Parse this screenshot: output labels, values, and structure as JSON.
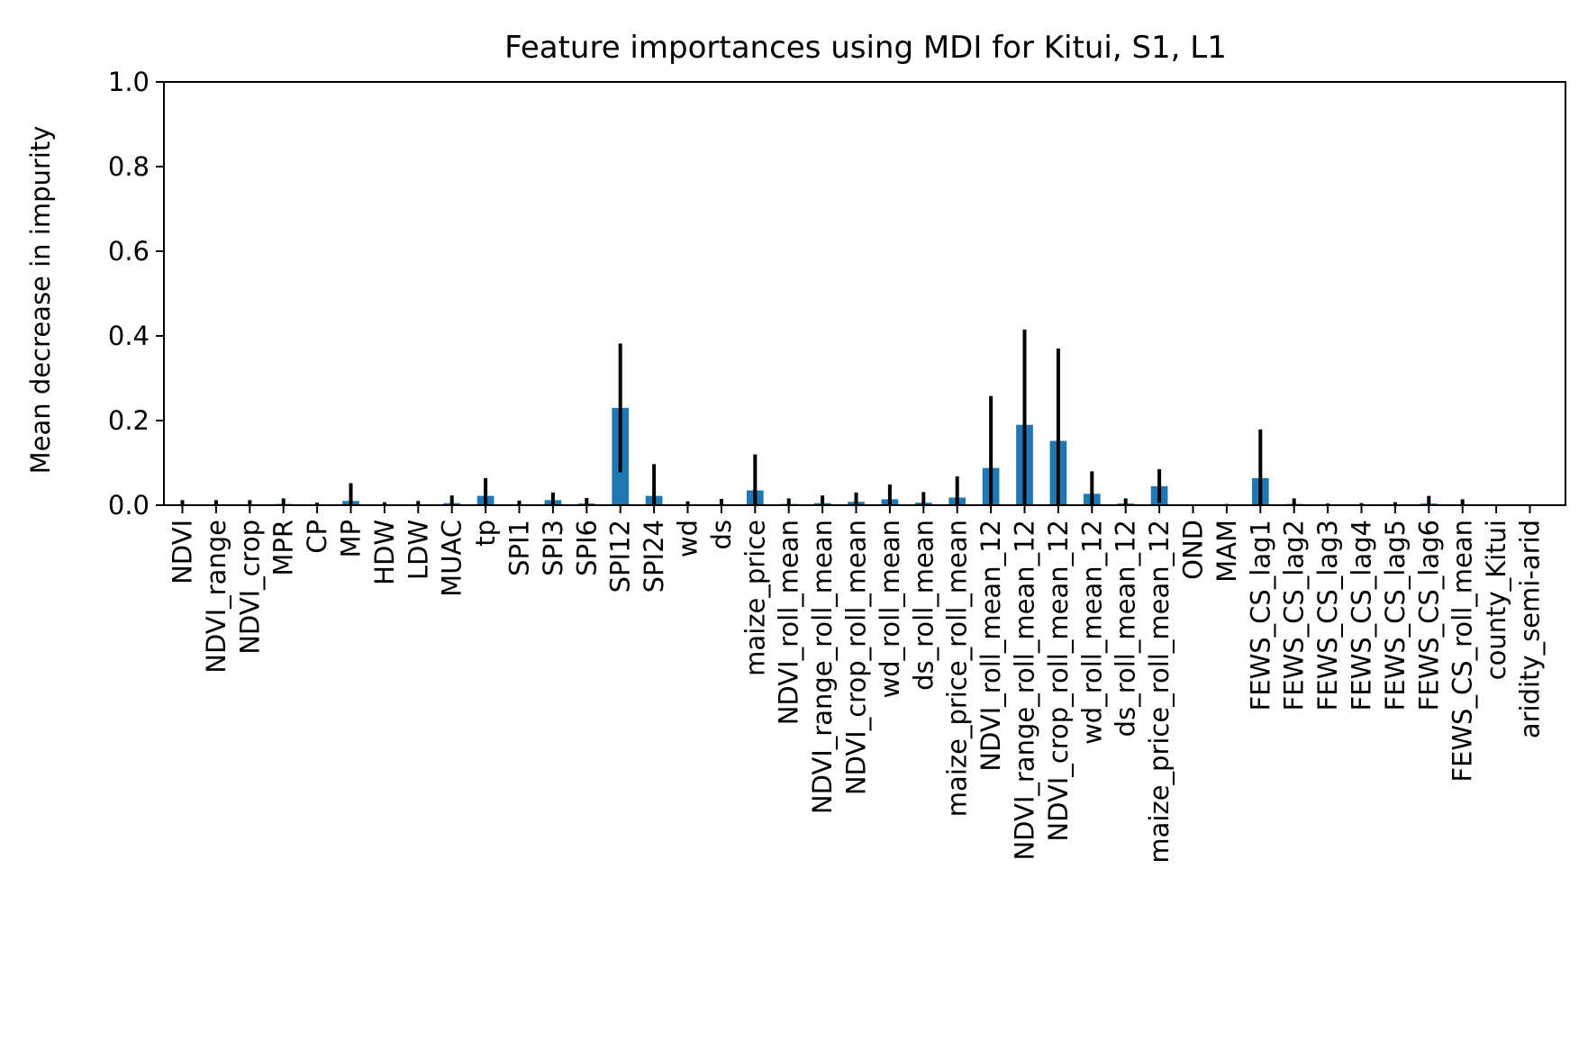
{
  "chart_data": {
    "type": "bar",
    "title": "Feature importances using MDI for Kitui, S1, L1",
    "xlabel": "",
    "ylabel": "Mean decrease in impurity",
    "ylim": [
      0,
      1.0
    ],
    "yticks": [
      "0.0",
      "0.2",
      "0.4",
      "0.6",
      "0.8",
      "1.0"
    ],
    "grid": false,
    "bar_color": "#1f77b4",
    "error_color": "#000000",
    "categories": [
      "NDVI",
      "NDVI_range",
      "NDVI_crop",
      "MPR",
      "CP",
      "MP",
      "HDW",
      "LDW",
      "MUAC",
      "tp",
      "SPI1",
      "SPI3",
      "SPI6",
      "SPI12",
      "SPI24",
      "wd",
      "ds",
      "maize_price",
      "NDVI_roll_mean",
      "NDVI_range_roll_mean",
      "NDVI_crop_roll_mean",
      "wd_roll_mean",
      "ds_roll_mean",
      "maize_price_roll_mean",
      "NDVI_roll_mean_12",
      "NDVI_range_roll_mean_12",
      "NDVI_crop_roll_mean_12",
      "wd_roll_mean_12",
      "ds_roll_mean_12",
      "maize_price_roll_mean_12",
      "OND",
      "MAM",
      "FEWS_CS_lag1",
      "FEWS_CS_lag2",
      "FEWS_CS_lag3",
      "FEWS_CS_lag4",
      "FEWS_CS_lag5",
      "FEWS_CS_lag6",
      "FEWS_CS_roll_mean",
      "county_Kitui",
      "aridity_semi-arid"
    ],
    "values": [
      0.002,
      0.002,
      0.002,
      0.003,
      0.001,
      0.01,
      0.001,
      0.002,
      0.005,
      0.022,
      0.002,
      0.012,
      0.004,
      0.23,
      0.022,
      0.001,
      0.002,
      0.035,
      0.003,
      0.005,
      0.008,
      0.014,
      0.006,
      0.018,
      0.088,
      0.19,
      0.152,
      0.027,
      0.004,
      0.045,
      0.0,
      0.0,
      0.064,
      0.003,
      0.001,
      0.001,
      0.001,
      0.004,
      0.002,
      0.0,
      0.0
    ],
    "errors": [
      0.01,
      0.01,
      0.01,
      0.013,
      0.005,
      0.042,
      0.006,
      0.008,
      0.018,
      0.042,
      0.009,
      0.018,
      0.013,
      0.152,
      0.075,
      0.008,
      0.013,
      0.085,
      0.013,
      0.018,
      0.022,
      0.035,
      0.025,
      0.05,
      0.17,
      0.225,
      0.218,
      0.053,
      0.012,
      0.04,
      0.0,
      0.003,
      0.115,
      0.013,
      0.003,
      0.004,
      0.006,
      0.018,
      0.012,
      0.0,
      0.0
    ]
  }
}
